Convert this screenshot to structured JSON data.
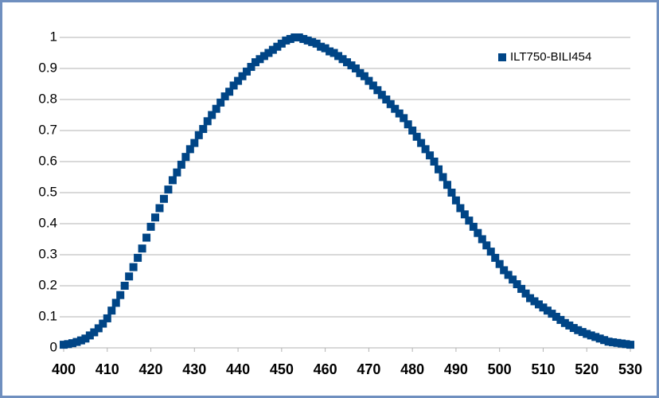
{
  "chart_data": {
    "type": "scatter",
    "x": [
      400,
      401,
      402,
      403,
      404,
      405,
      406,
      407,
      408,
      409,
      410,
      411,
      412,
      413,
      414,
      415,
      416,
      417,
      418,
      419,
      420,
      421,
      422,
      423,
      424,
      425,
      426,
      427,
      428,
      429,
      430,
      431,
      432,
      433,
      434,
      435,
      436,
      437,
      438,
      439,
      440,
      441,
      442,
      443,
      444,
      445,
      446,
      447,
      448,
      449,
      450,
      451,
      452,
      453,
      454,
      455,
      456,
      457,
      458,
      459,
      460,
      461,
      462,
      463,
      464,
      465,
      466,
      467,
      468,
      469,
      470,
      471,
      472,
      473,
      474,
      475,
      476,
      477,
      478,
      479,
      480,
      481,
      482,
      483,
      484,
      485,
      486,
      487,
      488,
      489,
      490,
      491,
      492,
      493,
      494,
      495,
      496,
      497,
      498,
      499,
      500,
      501,
      502,
      503,
      504,
      505,
      506,
      507,
      508,
      509,
      510,
      511,
      512,
      513,
      514,
      515,
      516,
      517,
      518,
      519,
      520,
      521,
      522,
      523,
      524,
      525,
      526,
      527,
      528,
      529,
      530
    ],
    "series": [
      {
        "name": "ILT750-BILI454",
        "color": "#004586",
        "values": [
          0.01,
          0.012,
          0.015,
          0.019,
          0.024,
          0.03,
          0.04,
          0.05,
          0.063,
          0.078,
          0.095,
          0.12,
          0.145,
          0.17,
          0.2,
          0.23,
          0.26,
          0.29,
          0.32,
          0.355,
          0.39,
          0.42,
          0.45,
          0.48,
          0.51,
          0.54,
          0.565,
          0.59,
          0.615,
          0.64,
          0.66,
          0.685,
          0.705,
          0.73,
          0.75,
          0.77,
          0.79,
          0.81,
          0.825,
          0.845,
          0.86,
          0.875,
          0.89,
          0.905,
          0.92,
          0.93,
          0.94,
          0.95,
          0.96,
          0.97,
          0.98,
          0.99,
          0.995,
          1.0,
          1.0,
          0.995,
          0.99,
          0.985,
          0.98,
          0.97,
          0.965,
          0.955,
          0.95,
          0.94,
          0.93,
          0.92,
          0.91,
          0.9,
          0.885,
          0.875,
          0.86,
          0.845,
          0.83,
          0.815,
          0.8,
          0.785,
          0.77,
          0.755,
          0.74,
          0.72,
          0.7,
          0.68,
          0.66,
          0.64,
          0.62,
          0.6,
          0.575,
          0.55,
          0.525,
          0.5,
          0.475,
          0.45,
          0.43,
          0.41,
          0.39,
          0.37,
          0.35,
          0.33,
          0.31,
          0.29,
          0.27,
          0.25,
          0.235,
          0.22,
          0.205,
          0.19,
          0.175,
          0.16,
          0.15,
          0.14,
          0.13,
          0.12,
          0.11,
          0.1,
          0.09,
          0.08,
          0.072,
          0.064,
          0.057,
          0.051,
          0.045,
          0.04,
          0.035,
          0.03,
          0.025,
          0.02,
          0.018,
          0.016,
          0.014,
          0.012,
          0.01
        ]
      }
    ],
    "xlim": [
      400,
      530
    ],
    "xticks": [
      400,
      410,
      420,
      430,
      440,
      450,
      460,
      470,
      480,
      490,
      500,
      510,
      520,
      530
    ],
    "ylim": [
      0,
      1
    ],
    "yticks": [
      0,
      0.1,
      0.2,
      0.3,
      0.4,
      0.5,
      0.6,
      0.7,
      0.8,
      0.9,
      1
    ],
    "grid": true,
    "legend": "top-right"
  }
}
